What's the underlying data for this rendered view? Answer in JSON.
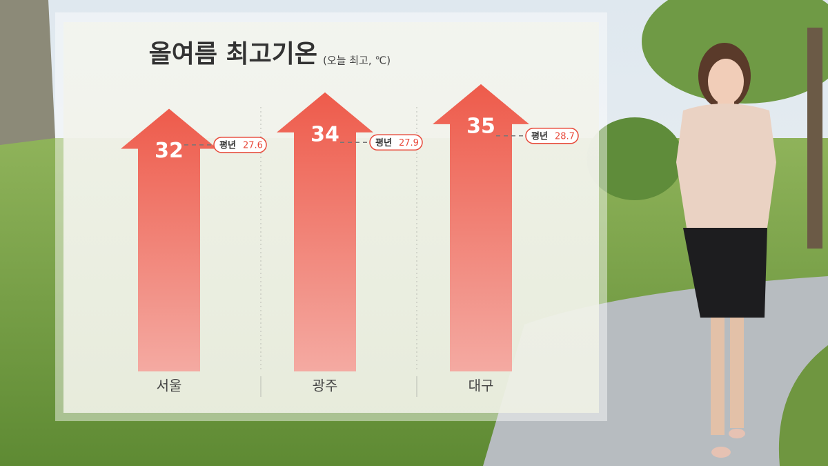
{
  "chart_data": {
    "type": "arrow-bar",
    "title": "올여름 최고기온",
    "subtitle": "(오늘 최고, ℃)",
    "categories": [
      "서울",
      "광주",
      "대구"
    ],
    "values": [
      32,
      34,
      35
    ],
    "color": "#ee5b4b",
    "average": {
      "label": "평년",
      "values": [
        27.6,
        27.9,
        28.7
      ],
      "color": "#e8493a"
    },
    "ylim": [
      0,
      36
    ]
  }
}
